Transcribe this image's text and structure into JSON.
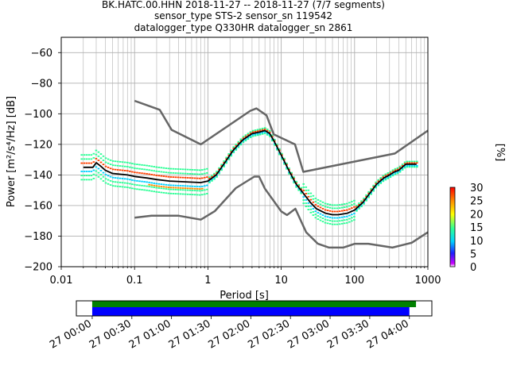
{
  "chart_data": [
    {
      "type": "scatter",
      "title_lines": [
        "BK.HATC.00.HHN   2018-11-27 -- 2018-11-27  (7/7 segments)",
        "sensor_type STS-2 sensor_sn 119542",
        "datalogger_type Q330HR datalogger_sn 2861"
      ],
      "xlabel": "Period [s]",
      "ylabel": "Power [m²/s⁴/Hz] [dB]",
      "x_scale": "log",
      "xlim": [
        0.01,
        1000
      ],
      "ylim": [
        -200,
        -50
      ],
      "x_ticks": [
        "0.01",
        "0.1",
        "1",
        "10",
        "100",
        "1000"
      ],
      "y_ticks": [
        "−200",
        "−180",
        "−160",
        "−140",
        "−120",
        "−100",
        "−80",
        "−60"
      ],
      "grid": true,
      "noise_models": {
        "color": "#666666",
        "high": [
          [
            0.1,
            -91.5
          ],
          [
            0.22,
            -97.4
          ],
          [
            0.32,
            -110.5
          ],
          [
            0.8,
            -120
          ],
          [
            3.8,
            -98
          ],
          [
            4.6,
            -96.5
          ],
          [
            6.3,
            -101
          ],
          [
            7.9,
            -113.5
          ],
          [
            15.4,
            -120
          ],
          [
            20,
            -138
          ],
          [
            354.8,
            -126
          ],
          [
            1000,
            -111
          ]
        ],
        "low": [
          [
            0.1,
            -168
          ],
          [
            0.17,
            -166.7
          ],
          [
            0.4,
            -166.7
          ],
          [
            0.8,
            -169.2
          ],
          [
            1.24,
            -163.7
          ],
          [
            2.4,
            -148.6
          ],
          [
            4.3,
            -141.1
          ],
          [
            5,
            -141.1
          ],
          [
            6,
            -149
          ],
          [
            10,
            -163.8
          ],
          [
            12,
            -166.2
          ],
          [
            15.6,
            -162.1
          ],
          [
            21.9,
            -177.5
          ],
          [
            31.6,
            -185
          ],
          [
            45,
            -187.5
          ],
          [
            70,
            -187.5
          ],
          [
            101,
            -185
          ],
          [
            154,
            -185
          ],
          [
            328,
            -187.5
          ],
          [
            600,
            -184.4
          ],
          [
            1000,
            -177.5
          ]
        ]
      },
      "median_curve": {
        "color": "#000000",
        "points": [
          [
            0.02,
            -135
          ],
          [
            0.027,
            -135
          ],
          [
            0.03,
            -132
          ],
          [
            0.034,
            -134
          ],
          [
            0.04,
            -137
          ],
          [
            0.05,
            -139
          ],
          [
            0.08,
            -140
          ],
          [
            0.1,
            -141
          ],
          [
            0.15,
            -142
          ],
          [
            0.2,
            -143
          ],
          [
            0.3,
            -144
          ],
          [
            0.5,
            -144.5
          ],
          [
            0.8,
            -145
          ],
          [
            1,
            -144
          ],
          [
            1.3,
            -140
          ],
          [
            1.7,
            -132
          ],
          [
            2.2,
            -124
          ],
          [
            3,
            -117
          ],
          [
            4,
            -113
          ],
          [
            5,
            -112
          ],
          [
            6,
            -111
          ],
          [
            7,
            -113
          ],
          [
            8,
            -118
          ],
          [
            10,
            -127
          ],
          [
            13,
            -138
          ],
          [
            16,
            -146
          ],
          [
            20,
            -152
          ],
          [
            25,
            -158
          ],
          [
            30,
            -162
          ],
          [
            40,
            -165
          ],
          [
            50,
            -166
          ],
          [
            60,
            -166
          ],
          [
            80,
            -165
          ],
          [
            100,
            -163
          ],
          [
            130,
            -158
          ],
          [
            150,
            -154
          ],
          [
            200,
            -146
          ],
          [
            250,
            -142
          ],
          [
            300,
            -140
          ],
          [
            350,
            -138
          ],
          [
            400,
            -137
          ],
          [
            500,
            -133
          ],
          [
            700,
            -133
          ]
        ]
      },
      "density_colorbar": {
        "label": "[%]",
        "ticks": [
          "0",
          "5",
          "10",
          "15",
          "20",
          "25",
          "30"
        ],
        "range": [
          0,
          30
        ]
      }
    },
    {
      "type": "timeline",
      "x_ticks": [
        "27 00:00",
        "27 00:30",
        "27 01:00",
        "27 01:30",
        "27 02:00",
        "27 02:30",
        "27 03:00",
        "27 03:30",
        "27 04:00"
      ],
      "segments": [
        {
          "color": "#008000",
          "start_min": 0,
          "end_min": 245
        },
        {
          "color": "#0000ff",
          "start_min": 0,
          "end_min": 240
        }
      ],
      "xlim_min": [
        -12,
        257
      ]
    }
  ]
}
